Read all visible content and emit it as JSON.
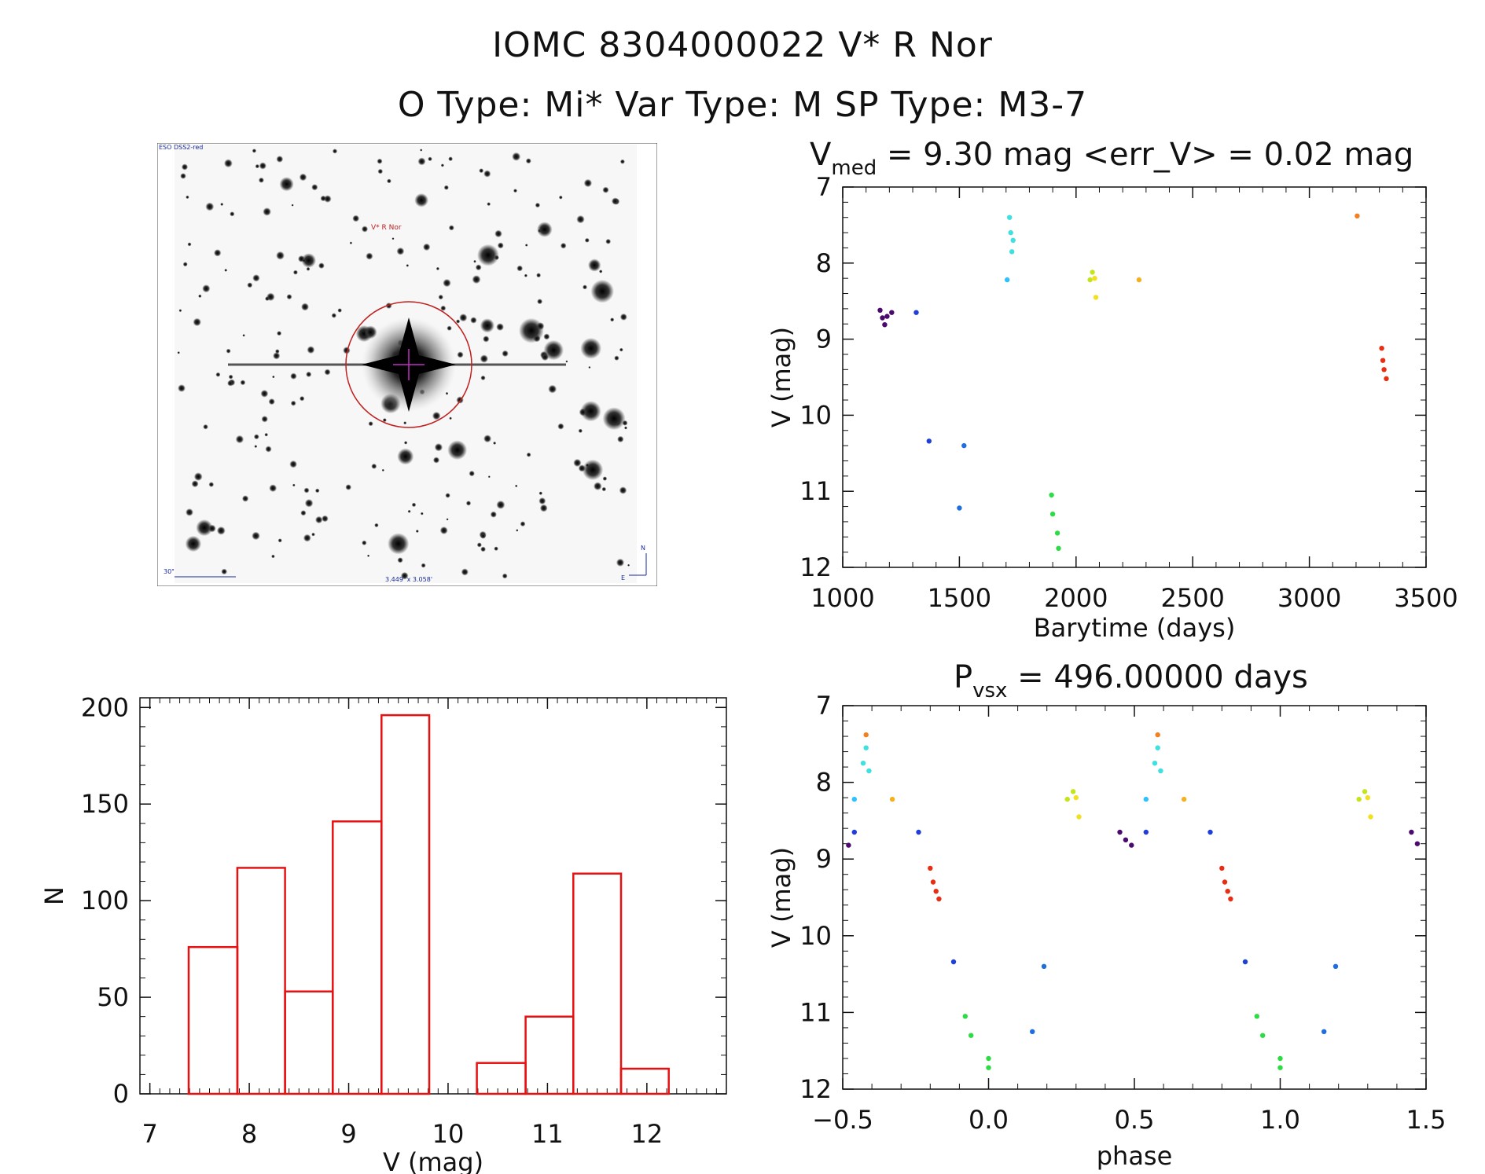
{
  "header": {
    "line1": "IOMC 8304000022    V* R Nor",
    "line2": "O Type: Mi*  Var Type: M  SP Type: M3-7"
  },
  "image": {
    "survey_label": "ESO DSS2-red",
    "target_label": "V* R Nor",
    "scale_label": "30\"",
    "fov_label": "3.449' x 3.058'",
    "north_label": "N",
    "east_label": "E"
  },
  "chart_data": [
    {
      "type": "scatter",
      "title": "V_med = 9.30 mag <err_V> = 0.02 mag",
      "title_main": "V",
      "title_sub": "med",
      "title_rest": " = 9.30 mag <err_V> = 0.02 mag",
      "xlabel": "Barytime (days)",
      "ylabel": "V (mag)",
      "xlim": [
        1000,
        3500
      ],
      "ylim": [
        12,
        7
      ],
      "y_inverted": true,
      "xticks": [
        1000,
        1500,
        2000,
        2500,
        3000,
        3500
      ],
      "yticks": [
        7,
        8,
        9,
        10,
        11,
        12
      ],
      "groups": [
        {
          "color": "#4b0a6e",
          "points": [
            [
              1160,
              8.62
            ],
            [
              1170,
              8.72
            ],
            [
              1180,
              8.81
            ],
            [
              1190,
              8.7
            ],
            [
              1210,
              8.65
            ]
          ]
        },
        {
          "color": "#1f3fd6",
          "points": [
            [
              1315,
              8.65
            ],
            [
              1370,
              10.34
            ]
          ]
        },
        {
          "color": "#1f6ee0",
          "points": [
            [
              1500,
              11.22
            ],
            [
              1520,
              10.4
            ]
          ]
        },
        {
          "color": "#2fc0ff",
          "points": [
            [
              1705,
              8.22
            ]
          ]
        },
        {
          "color": "#3ee0e0",
          "points": [
            [
              1715,
              7.4
            ],
            [
              1720,
              7.6
            ],
            [
              1725,
              7.85
            ],
            [
              1730,
              7.7
            ]
          ]
        },
        {
          "color": "#2ddc45",
          "points": [
            [
              1895,
              11.05
            ],
            [
              1900,
              11.3
            ],
            [
              1920,
              11.55
            ],
            [
              1925,
              11.75
            ]
          ]
        },
        {
          "color": "#c4e51c",
          "points": [
            [
              2060,
              8.22
            ],
            [
              2070,
              8.12
            ]
          ]
        },
        {
          "color": "#f0e020",
          "points": [
            [
              2080,
              8.2
            ],
            [
              2085,
              8.45
            ]
          ]
        },
        {
          "color": "#f5b020",
          "points": [
            [
              2270,
              8.22
            ]
          ]
        },
        {
          "color": "#f08020",
          "points": [
            [
              3205,
              7.38
            ]
          ]
        },
        {
          "color": "#e82e12",
          "points": [
            [
              3310,
              9.12
            ],
            [
              3315,
              9.28
            ],
            [
              3320,
              9.4
            ],
            [
              3330,
              9.52
            ]
          ]
        }
      ]
    },
    {
      "type": "bar",
      "title": "",
      "xlabel": "V (mag)",
      "ylabel": "N",
      "xlim": [
        6.9,
        12.8
      ],
      "ylim": [
        0,
        205
      ],
      "xticks": [
        7,
        8,
        9,
        10,
        11,
        12
      ],
      "yticks": [
        0,
        50,
        100,
        150,
        200
      ],
      "bin_edges": [
        7.39,
        7.88,
        8.36,
        8.84,
        9.33,
        9.81,
        10.29,
        10.78,
        11.26,
        11.74,
        12.22
      ],
      "values": [
        76,
        117,
        53,
        141,
        196,
        0,
        16,
        40,
        114,
        13
      ],
      "color": "#e81010"
    },
    {
      "type": "scatter",
      "title": "P_vsx = 496.00000 days",
      "title_main": "P",
      "title_sub": "vsx",
      "title_rest": " = 496.00000 days",
      "xlabel": "phase",
      "ylabel": "V (mag)",
      "xlim": [
        -0.5,
        1.5
      ],
      "ylim": [
        12,
        7
      ],
      "y_inverted": true,
      "xticks": [
        -0.5,
        0.0,
        0.5,
        1.0,
        1.5
      ],
      "yticks": [
        7,
        8,
        9,
        10,
        11,
        12
      ],
      "groups": [
        {
          "color": "#4b0a6e",
          "points": [
            [
              -0.48,
              8.82
            ],
            [
              0.45,
              8.65
            ],
            [
              0.47,
              8.75
            ],
            [
              0.49,
              8.82
            ],
            [
              1.45,
              8.65
            ],
            [
              1.47,
              8.8
            ]
          ]
        },
        {
          "color": "#1f3fd6",
          "points": [
            [
              -0.46,
              8.65
            ],
            [
              -0.24,
              8.65
            ],
            [
              -0.12,
              10.34
            ],
            [
              0.54,
              8.65
            ],
            [
              0.76,
              8.65
            ],
            [
              0.88,
              10.34
            ]
          ]
        },
        {
          "color": "#1f6ee0",
          "points": [
            [
              0.15,
              11.25
            ],
            [
              0.19,
              10.4
            ],
            [
              1.15,
              11.25
            ],
            [
              1.19,
              10.4
            ]
          ]
        },
        {
          "color": "#2fc0ff",
          "points": [
            [
              -0.46,
              8.22
            ],
            [
              0.54,
              8.22
            ]
          ]
        },
        {
          "color": "#3ee0e0",
          "points": [
            [
              -0.43,
              7.75
            ],
            [
              -0.42,
              7.55
            ],
            [
              -0.41,
              7.85
            ],
            [
              0.57,
              7.75
            ],
            [
              0.58,
              7.55
            ],
            [
              0.59,
              7.85
            ]
          ]
        },
        {
          "color": "#f08020",
          "points": [
            [
              -0.42,
              7.38
            ],
            [
              0.58,
              7.38
            ]
          ]
        },
        {
          "color": "#f5b020",
          "points": [
            [
              -0.33,
              8.22
            ],
            [
              0.67,
              8.22
            ]
          ]
        },
        {
          "color": "#e82e12",
          "points": [
            [
              -0.2,
              9.12
            ],
            [
              -0.19,
              9.3
            ],
            [
              -0.18,
              9.42
            ],
            [
              -0.17,
              9.52
            ],
            [
              0.8,
              9.12
            ],
            [
              0.81,
              9.3
            ],
            [
              0.82,
              9.42
            ],
            [
              0.83,
              9.52
            ]
          ]
        },
        {
          "color": "#2ddc45",
          "points": [
            [
              -0.08,
              11.05
            ],
            [
              -0.06,
              11.3
            ],
            [
              0.0,
              11.6
            ],
            [
              0.0,
              11.72
            ],
            [
              0.92,
              11.05
            ],
            [
              0.94,
              11.3
            ],
            [
              1.0,
              11.6
            ],
            [
              1.0,
              11.72
            ]
          ]
        },
        {
          "color": "#c4e51c",
          "points": [
            [
              0.27,
              8.22
            ],
            [
              0.29,
              8.12
            ],
            [
              1.27,
              8.22
            ],
            [
              1.29,
              8.12
            ]
          ]
        },
        {
          "color": "#f0e020",
          "points": [
            [
              0.3,
              8.2
            ],
            [
              0.31,
              8.45
            ],
            [
              1.3,
              8.2
            ],
            [
              1.31,
              8.45
            ]
          ]
        }
      ]
    }
  ]
}
